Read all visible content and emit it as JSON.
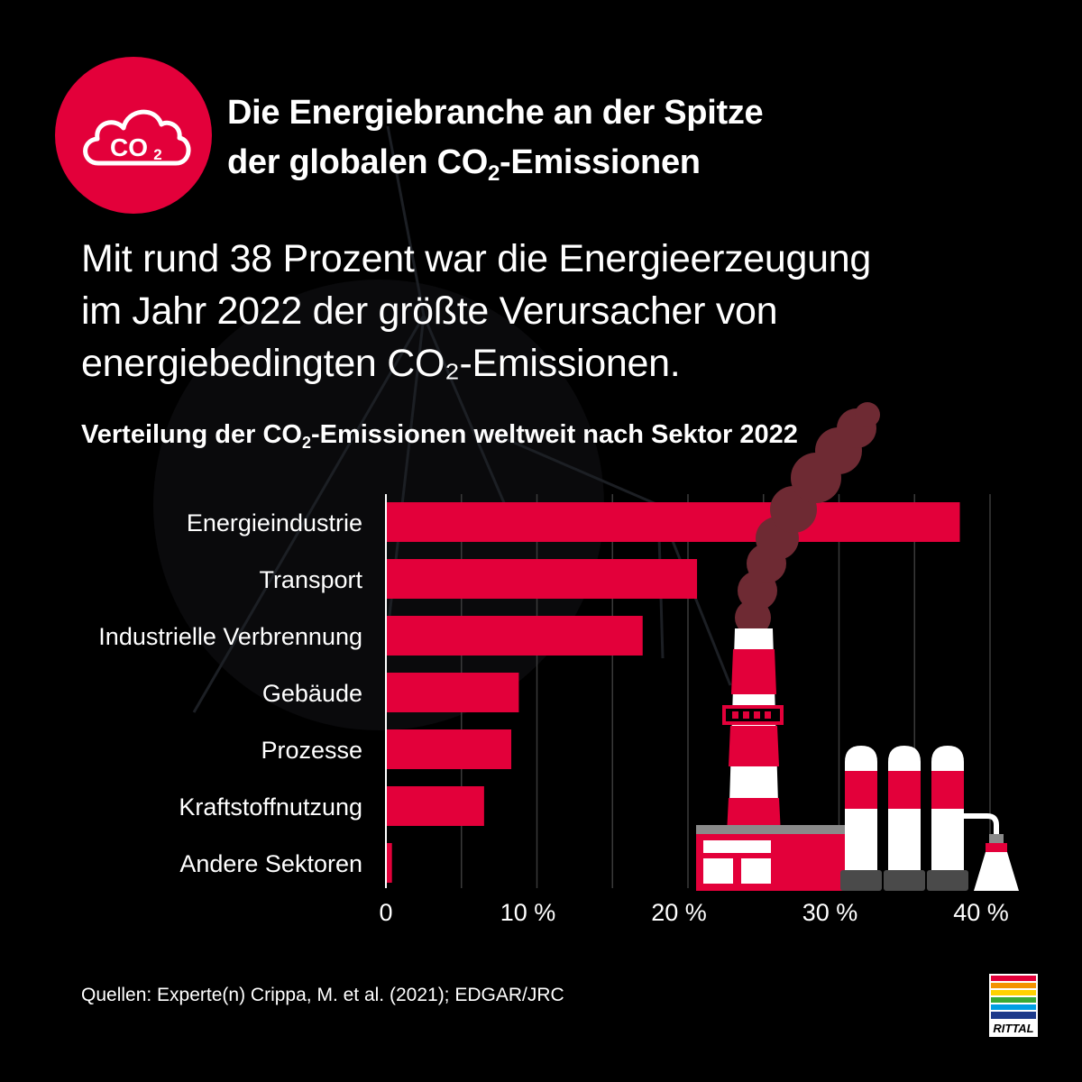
{
  "headline": {
    "line1": "Die Energiebranche an der Spitze",
    "line2_pre": "der globalen CO",
    "line2_sub": "2",
    "line2_post": "-Emissionen"
  },
  "badge": {
    "text": "CO",
    "sub": "2",
    "icon": "cloud-icon"
  },
  "subtext": {
    "line1": "Mit rund 38 Prozent war die Energieerzeugung",
    "line2": "im Jahr 2022 der größte Verursacher von",
    "line3": "energiebedingten CO₂-Emissionen."
  },
  "chart_title": {
    "pre": "Verteilung der CO",
    "sub": "2",
    "post": "-Emissionen weltweit nach Sektor 2022"
  },
  "chart_data": {
    "type": "bar",
    "orientation": "horizontal",
    "title": "Verteilung der CO2-Emissionen weltweit nach Sektor 2022",
    "categories": [
      "Energieindustrie",
      "Transport",
      "Industrielle Verbrennung",
      "Gebäude",
      "Prozesse",
      "Kraftstoffnutzung",
      "Andere Sektoren"
    ],
    "values": [
      38,
      20.6,
      17,
      8.8,
      8.3,
      6.5,
      0.4
    ],
    "xlim": [
      0,
      40
    ],
    "ticks": [
      0,
      10,
      20,
      30,
      40
    ],
    "tick_labels": [
      "0",
      "10 %",
      "20 %",
      "30 %",
      "40 %"
    ],
    "gridlines": [
      5,
      10,
      15,
      20,
      25,
      30,
      35,
      40
    ],
    "xlabel": "",
    "ylabel": "",
    "bar_color": "#e3003a"
  },
  "source": "Quellen: Experte(n) Crippa, M. et al. (2021); EDGAR/JRC",
  "logo": {
    "text": "RITTAL"
  },
  "colors": {
    "accent": "#e3003a",
    "background": "#000000",
    "text": "#ffffff"
  }
}
